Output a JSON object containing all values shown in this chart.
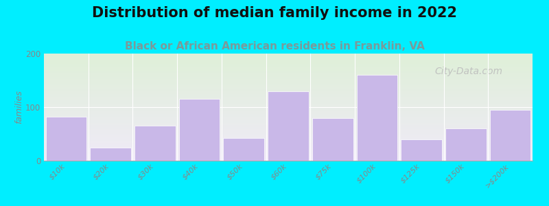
{
  "title": "Distribution of median family income in 2022",
  "subtitle": "Black or African American residents in Franklin, VA",
  "categories": [
    "$10k",
    "$20k",
    "$30k",
    "$40k",
    "$50k",
    "$60k",
    "$75k",
    "$100k",
    "$125k",
    "$150k",
    ">$200k"
  ],
  "values": [
    82,
    25,
    65,
    115,
    42,
    130,
    80,
    160,
    40,
    60,
    95
  ],
  "bar_color": "#c9b8e8",
  "background_outer": "#00eeff",
  "background_plot_top_left": "#dff0d8",
  "background_plot_bottom_right": "#f0eaf8",
  "ylabel": "families",
  "ylim": [
    0,
    200
  ],
  "yticks": [
    0,
    100,
    200
  ],
  "title_fontsize": 15,
  "subtitle_fontsize": 11,
  "subtitle_color": "#7a9a9a",
  "watermark_text": "City-Data.com",
  "watermark_color": "#bbbbbb",
  "tick_label_color": "#888888"
}
